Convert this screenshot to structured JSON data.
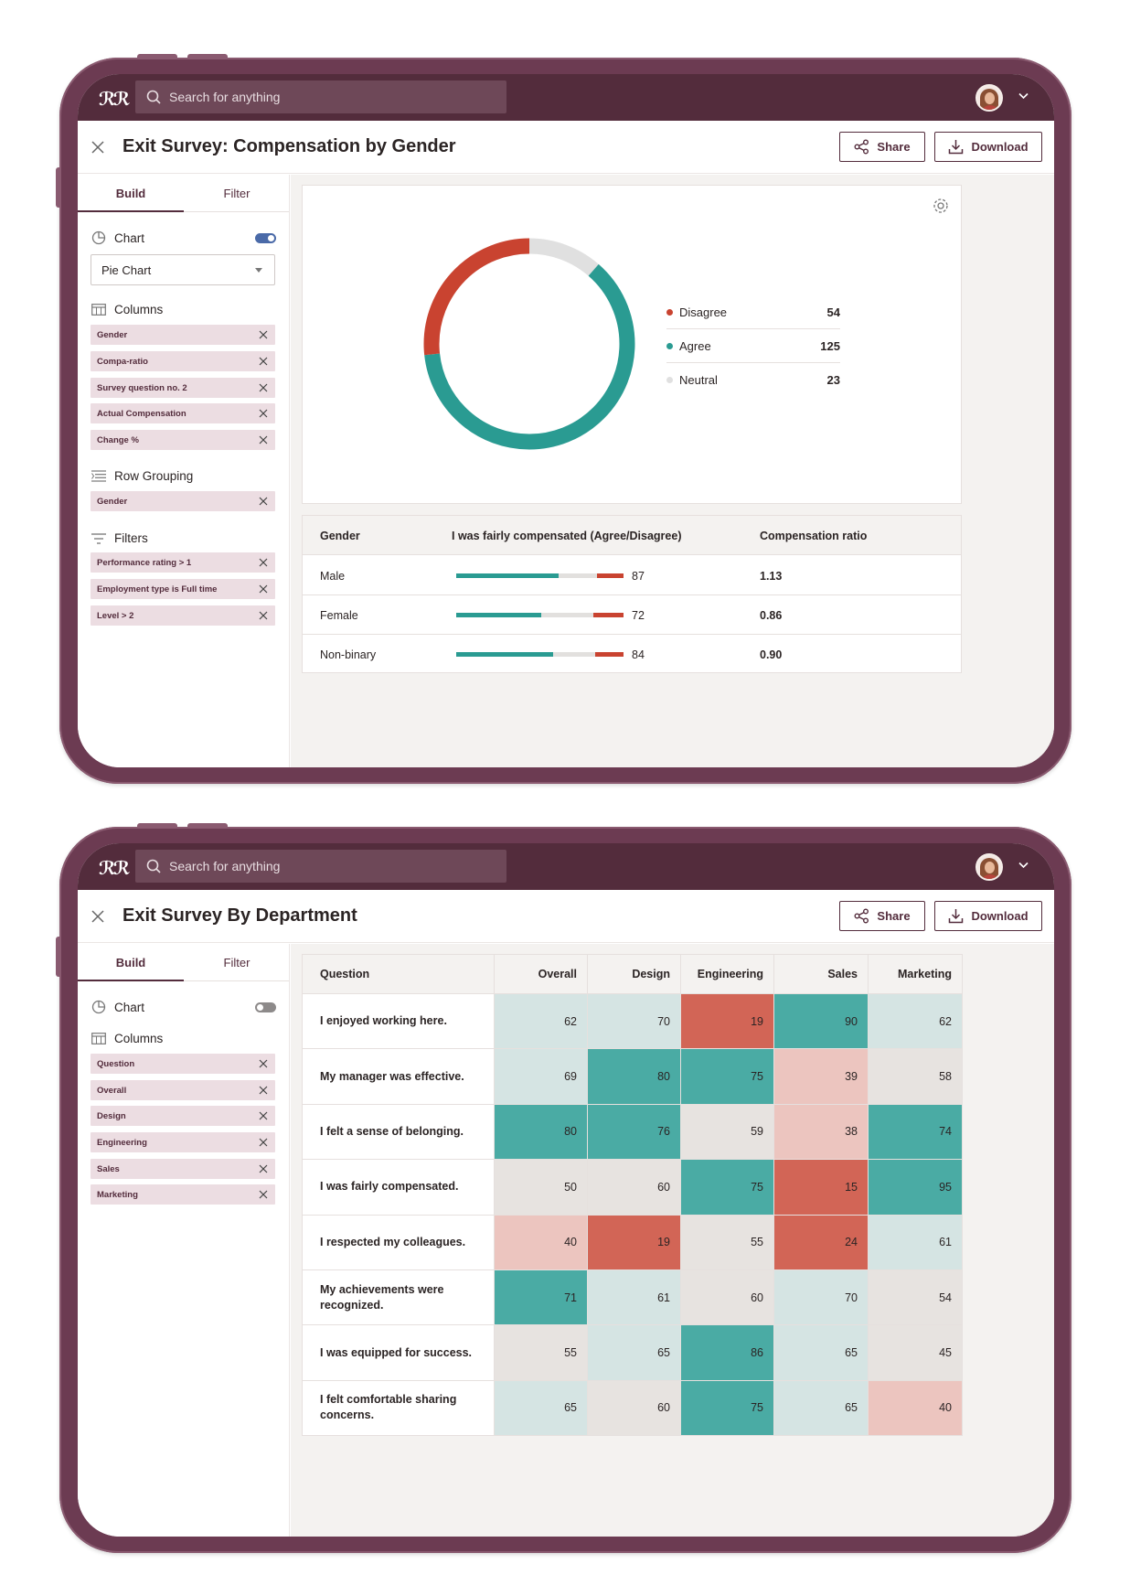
{
  "colors": {
    "frame": "#6c3b52",
    "topbar": "#532c3c",
    "accent": "#532c3c",
    "teal": "#2a9b92",
    "red": "#c94330",
    "neutral": "#e0e0e0",
    "chip_bg": "#ecdde2"
  },
  "app": {
    "logo_text": "ℛℛ",
    "search_placeholder": "Search for anything",
    "avatar_icon": "user-avatar",
    "menu_icon": "chevron-down-icon"
  },
  "screen1": {
    "title": "Exit Survey: Compensation by Gender",
    "share_label": "Share",
    "download_label": "Download",
    "tabs": {
      "build": "Build",
      "filter": "Filter"
    },
    "chart_section": {
      "label": "Chart",
      "toggle_on": true,
      "select_value": "Pie Chart"
    },
    "columns_label": "Columns",
    "columns": [
      "Gender",
      "Compa-ratio",
      "Survey question no. 2",
      "Actual Compensation",
      "Change %"
    ],
    "row_grouping_label": "Row Grouping",
    "row_grouping": [
      "Gender"
    ],
    "filters_label": "Filters",
    "filters": [
      "Performance rating > 1",
      "Employment type is Full time",
      "Level > 2"
    ],
    "donut": {
      "segments": [
        {
          "label": "Disagree",
          "value": 54,
          "color": "#c94330"
        },
        {
          "label": "Agree",
          "value": 125,
          "color": "#2a9b92"
        },
        {
          "label": "Neutral",
          "value": 23,
          "color": "#e0e0e0"
        }
      ]
    },
    "table": {
      "headers": [
        "Gender",
        "I was fairly compensated (Agree/Disagree)",
        "Compensation ratio"
      ],
      "rows": [
        {
          "gender": "Male",
          "score": "87",
          "agree_frac": 0.61,
          "disagree_frac": 0.16,
          "ratio": "1.13"
        },
        {
          "gender": "Female",
          "score": "72",
          "agree_frac": 0.51,
          "disagree_frac": 0.18,
          "ratio": "0.86"
        },
        {
          "gender": "Non-binary",
          "score": "84",
          "agree_frac": 0.58,
          "disagree_frac": 0.17,
          "ratio": "0.90"
        }
      ]
    }
  },
  "screen2": {
    "title": "Exit Survey By Department",
    "share_label": "Share",
    "download_label": "Download",
    "tabs": {
      "build": "Build",
      "filter": "Filter"
    },
    "chart_section": {
      "label": "Chart",
      "toggle_on": false
    },
    "columns_label": "Columns",
    "columns": [
      "Question",
      "Overall",
      "Design",
      "Engineering",
      "Sales",
      "Marketing"
    ],
    "heatmap": {
      "headers": [
        "Question",
        "Overall",
        "Design",
        "Engineering",
        "Sales",
        "Marketing"
      ],
      "rows": [
        {
          "question": "I enjoyed working here.",
          "values": [
            "62",
            "70",
            "19",
            "90",
            "62"
          ]
        },
        {
          "question": "My manager was effective.",
          "values": [
            "69",
            "80",
            "75",
            "39",
            "58"
          ]
        },
        {
          "question": "I felt a sense of belonging.",
          "values": [
            "80",
            "76",
            "59",
            "38",
            "74"
          ]
        },
        {
          "question": "I was fairly compensated.",
          "values": [
            "50",
            "60",
            "75",
            "15",
            "95"
          ]
        },
        {
          "question": "I respected my colleagues.",
          "values": [
            "40",
            "19",
            "55",
            "24",
            "61"
          ]
        },
        {
          "question": "My achievements were recognized.",
          "values": [
            "71",
            "61",
            "60",
            "70",
            "54"
          ]
        },
        {
          "question": "I was equipped for success.",
          "values": [
            "55",
            "65",
            "86",
            "65",
            "45"
          ]
        },
        {
          "question": "I felt comfortable sharing concerns.",
          "values": [
            "65",
            "60",
            "75",
            "65",
            "40"
          ]
        }
      ],
      "cell_colors": [
        [
          "#d5e4e3",
          "#d5e4e3",
          "#d26556",
          "#4aaba4",
          "#d5e4e3"
        ],
        [
          "#d5e4e3",
          "#4aaba4",
          "#4aaba4",
          "#ecc5bf",
          "#e7e3e0"
        ],
        [
          "#4aaba4",
          "#4aaba4",
          "#e7e3e0",
          "#ecc5bf",
          "#4aaba4"
        ],
        [
          "#e7e3e0",
          "#e7e3e0",
          "#4aaba4",
          "#d26556",
          "#4aaba4"
        ],
        [
          "#ecc5bf",
          "#d26556",
          "#e7e3e0",
          "#d26556",
          "#d5e4e3"
        ],
        [
          "#4aaba4",
          "#d5e4e3",
          "#e7e3e0",
          "#d5e4e3",
          "#e7e3e0"
        ],
        [
          "#e7e3e0",
          "#d5e4e3",
          "#4aaba4",
          "#d5e4e3",
          "#e7e3e0"
        ],
        [
          "#d5e4e3",
          "#e7e3e0",
          "#4aaba4",
          "#d5e4e3",
          "#ecc5bf"
        ]
      ]
    }
  }
}
